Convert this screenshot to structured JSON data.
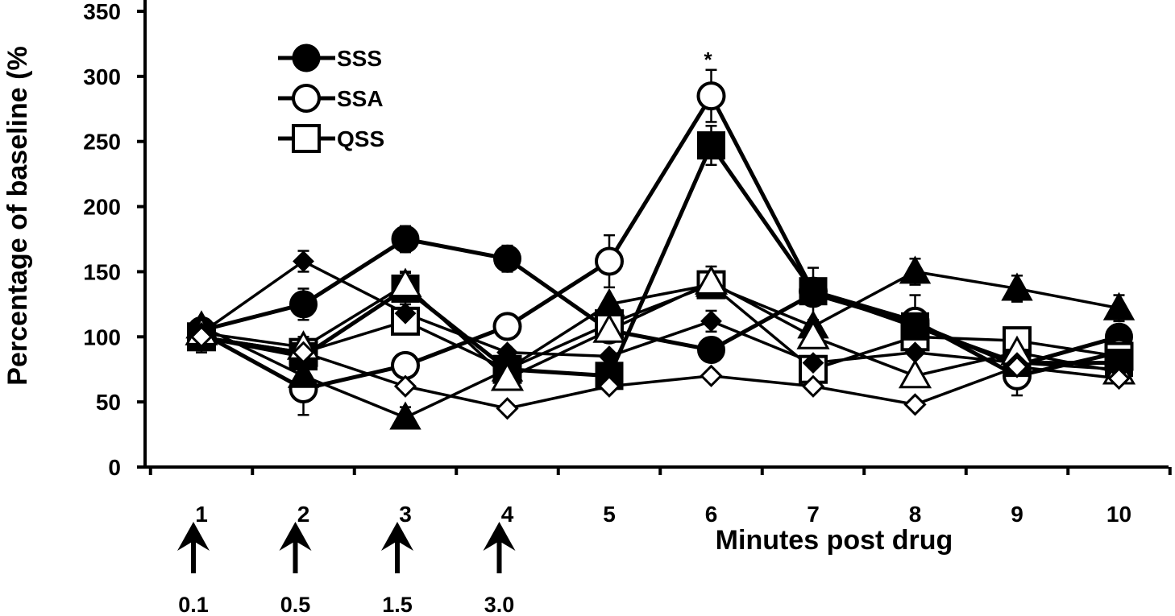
{
  "chart_data": {
    "type": "line",
    "title": "",
    "xlabel": "Minutes post drug",
    "ylabel": "Percentage of baseline (%",
    "ylim": [
      0,
      350
    ],
    "yticks": [
      "0",
      "50",
      "100",
      "150",
      "200",
      "250",
      "300",
      "350"
    ],
    "categories": [
      "1",
      "2",
      "3",
      "4",
      "5",
      "6",
      "7",
      "8",
      "9",
      "10"
    ],
    "legend": {
      "position": "top-left",
      "entries": [
        {
          "label": "SSS",
          "marker": "circle-filled"
        },
        {
          "label": "SSA",
          "marker": "circle-open"
        },
        {
          "label": "QSS",
          "marker": "square-open"
        }
      ]
    },
    "annotation": {
      "text": "*",
      "x": "6",
      "y": 305
    },
    "dose_markers": [
      {
        "x": "1",
        "label": "0.1"
      },
      {
        "x": "2",
        "label": "0.5"
      },
      {
        "x": "3",
        "label": "1.5"
      },
      {
        "x": "4",
        "label": "3.0"
      }
    ],
    "series": [
      {
        "name": "SSS",
        "marker": "circle-filled",
        "values": [
          105,
          125,
          175,
          160,
          105,
          90,
          133,
          110,
          78,
          100
        ],
        "errors": [
          8,
          12,
          10,
          10,
          0,
          0,
          20,
          22,
          0,
          0
        ]
      },
      {
        "name": "SSA",
        "marker": "circle-open",
        "values": [
          103,
          60,
          78,
          108,
          158,
          285,
          135,
          112,
          70,
          88
        ],
        "errors": [
          0,
          20,
          0,
          0,
          20,
          20,
          0,
          0,
          15,
          0
        ]
      },
      {
        "name": "QSS",
        "marker": "square-open",
        "values": [
          100,
          88,
          112,
          75,
          110,
          140,
          75,
          100,
          97,
          85
        ],
        "errors": [
          12,
          12,
          0,
          0,
          0,
          0,
          0,
          0,
          0,
          0
        ]
      },
      {
        "marker": "square-filled",
        "values": [
          100,
          85,
          137,
          75,
          70,
          247,
          135,
          108,
          80,
          80
        ],
        "errors": [
          0,
          0,
          12,
          0,
          0,
          15,
          0,
          0,
          0,
          0
        ]
      },
      {
        "marker": "triangle-filled",
        "values": [
          108,
          70,
          38,
          75,
          125,
          140,
          108,
          150,
          137,
          122
        ],
        "errors": [
          0,
          0,
          8,
          0,
          0,
          0,
          0,
          10,
          10,
          10
        ]
      },
      {
        "marker": "triangle-open",
        "values": [
          103,
          92,
          140,
          68,
          105,
          142,
          100,
          70,
          88,
          73
        ],
        "errors": [
          0,
          0,
          10,
          0,
          0,
          12,
          0,
          0,
          0,
          0
        ]
      },
      {
        "marker": "diamond-filled",
        "values": [
          103,
          158,
          118,
          88,
          85,
          112,
          80,
          88,
          80,
          75
        ],
        "errors": [
          0,
          8,
          0,
          0,
          0,
          8,
          0,
          0,
          0,
          0
        ]
      },
      {
        "marker": "diamond-open",
        "values": [
          100,
          88,
          62,
          45,
          62,
          70,
          62,
          48,
          77,
          68
        ],
        "errors": [
          0,
          0,
          0,
          0,
          0,
          0,
          0,
          0,
          0,
          0
        ]
      }
    ]
  }
}
